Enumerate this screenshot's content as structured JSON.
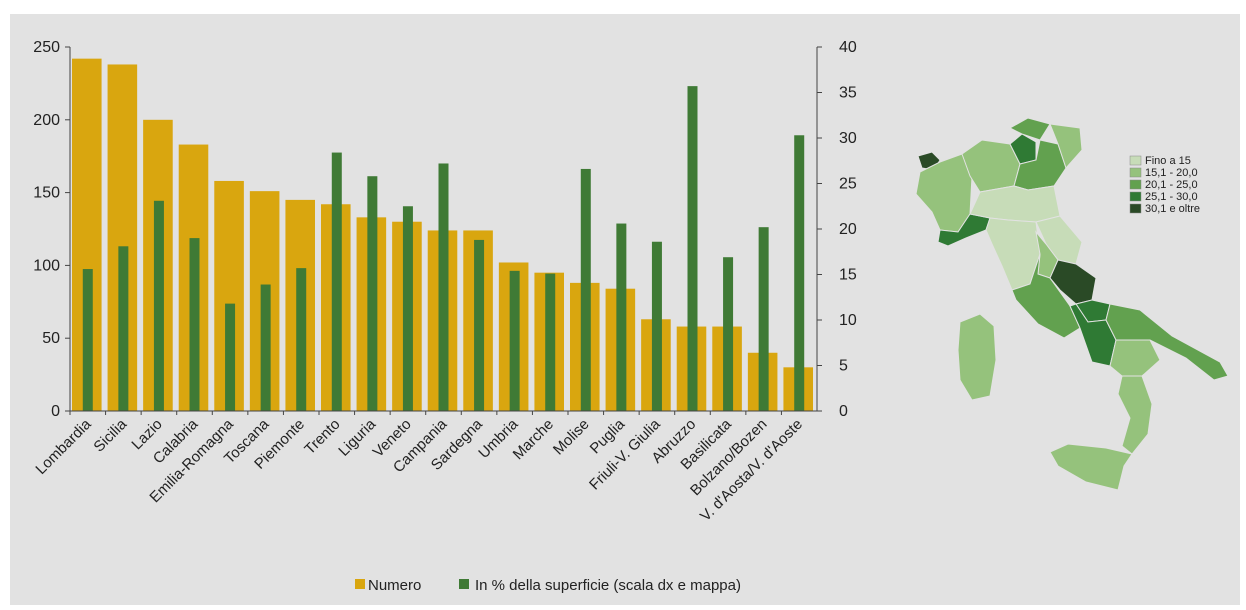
{
  "chart_data": {
    "type": "bar",
    "categories": [
      "Lombardia",
      "Sicilia",
      "Lazio",
      "Calabria",
      "Emilia-Romagna",
      "Toscana",
      "Piemonte",
      "Trento",
      "Liguria",
      "Veneto",
      "Campania",
      "Sardegna",
      "Umbria",
      "Marche",
      "Molise",
      "Puglia",
      "Friuli-V. Giulia",
      "Abruzzo",
      "Basilicata",
      "Bolzano/Bozen",
      "V. d'Aosta/V. d'Aoste"
    ],
    "series": [
      {
        "name": "Numero",
        "axis": "left",
        "color": "#d9a60f",
        "values": [
          242,
          238,
          200,
          183,
          158,
          151,
          145,
          142,
          133,
          130,
          124,
          124,
          102,
          95,
          88,
          84,
          63,
          58,
          58,
          40,
          30
        ]
      },
      {
        "name": "In % della superficie (scala dx e mappa)",
        "axis": "right",
        "color": "#3f7a35",
        "values": [
          15.6,
          18.1,
          23.1,
          19.0,
          11.8,
          13.9,
          15.7,
          28.4,
          25.8,
          22.5,
          27.2,
          18.8,
          15.4,
          15.1,
          26.6,
          20.6,
          18.6,
          35.7,
          16.9,
          20.2,
          30.3
        ]
      }
    ],
    "ylim_left": [
      0,
      250
    ],
    "yticks_left": [
      0,
      50,
      100,
      150,
      200,
      250
    ],
    "ylim_right": [
      0,
      40
    ],
    "yticks_right": [
      0,
      5,
      10,
      15,
      20,
      25,
      30,
      35,
      40
    ],
    "grid": false,
    "legend_position": "bottom"
  },
  "map_legend": {
    "items": [
      {
        "label": "Fino a 15",
        "color": "#c7dcb8"
      },
      {
        "label": "15,1 - 20,0",
        "color": "#95c27c"
      },
      {
        "label": "20,1 - 25,0",
        "color": "#62a14f"
      },
      {
        "label": "25,1 - 30,0",
        "color": "#2f7a34"
      },
      {
        "label": "30,1 e oltre",
        "color": "#2a4a26"
      }
    ]
  }
}
